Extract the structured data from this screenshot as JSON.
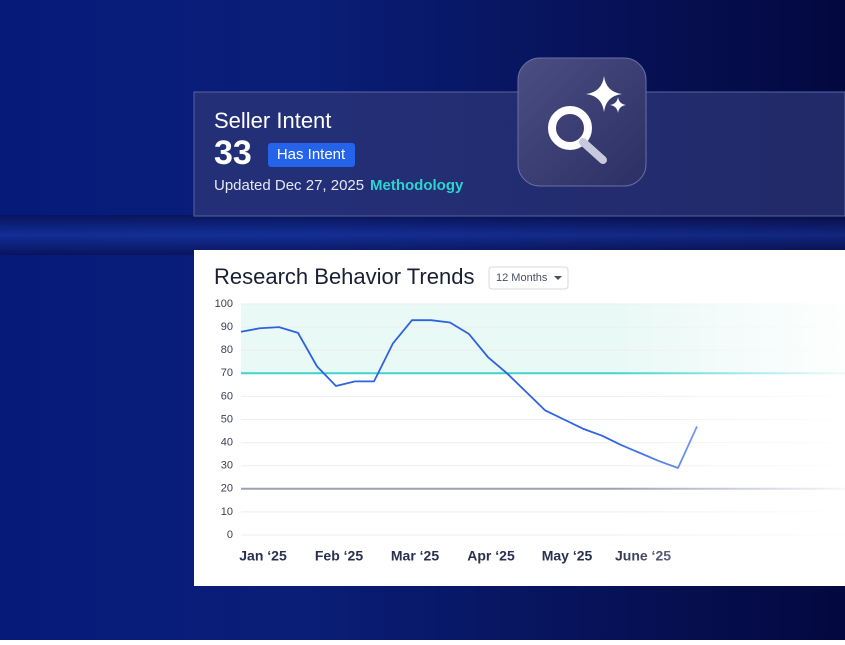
{
  "card": {
    "title": "Seller Intent",
    "score": 33,
    "badge": "Has Intent",
    "updated": "Updated Dec 27, 2025",
    "link": "Methodology"
  },
  "chart_data": {
    "type": "line",
    "title": "Research Behavior Trends",
    "range_select": "12 Months",
    "categories": [
      null,
      "Jan ‘25",
      null,
      null,
      null,
      "Feb ‘25",
      null,
      null,
      null,
      "Mar ‘25",
      null,
      null,
      null,
      "Apr ‘25",
      null,
      null,
      null,
      "May ‘25",
      null,
      null,
      null,
      "June ‘25",
      null,
      null,
      null
    ],
    "values": [
      88,
      89.5,
      90,
      87.5,
      73,
      64.5,
      66.5,
      66.5,
      83,
      93,
      93,
      92,
      87,
      77,
      70,
      62,
      54,
      50,
      46,
      43,
      39,
      35.5,
      32,
      29,
      47
    ],
    "color": "#2d63e0",
    "ylim": [
      0,
      100
    ],
    "yticks": [
      0,
      10,
      20,
      30,
      40,
      50,
      60,
      70,
      80,
      90,
      100
    ],
    "grid": true,
    "shaded_range": [
      70,
      100
    ],
    "reference_lines": [
      {
        "value": 70,
        "color": "#3fd3d0"
      },
      {
        "value": 20,
        "color": "#9aa1b4"
      }
    ]
  }
}
